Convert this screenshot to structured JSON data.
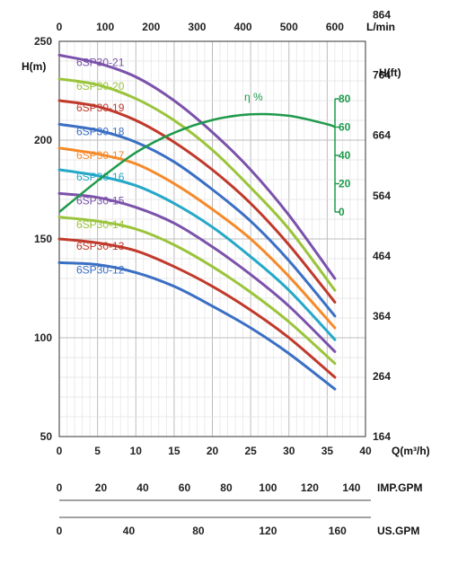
{
  "chart_data": {
    "type": "line",
    "x_axis": {
      "label": "Q(m³/h)",
      "range": [
        0,
        40
      ],
      "ticks": [
        0,
        5,
        10,
        15,
        20,
        25,
        30,
        35,
        40
      ]
    },
    "y_axis": {
      "label": "H(m)",
      "range": [
        50,
        250
      ],
      "ticks": [
        50,
        100,
        150,
        200,
        250
      ]
    },
    "top_axis": {
      "label": "L/min",
      "range": [
        0,
        666.7
      ],
      "ticks": [
        0,
        100,
        200,
        300,
        400,
        500,
        600
      ]
    },
    "right_axis": {
      "label": "H(ft)",
      "ticks": [
        164,
        264,
        364,
        464,
        564,
        664,
        764,
        864
      ]
    },
    "efficiency_axis": {
      "label": "η %",
      "range": [
        0,
        80
      ],
      "ticks": [
        0,
        20,
        40,
        60,
        80
      ]
    },
    "imp_gpm_axis": {
      "label": "IMP.GPM",
      "range": [
        0,
        146.7
      ],
      "ticks": [
        0,
        20,
        40,
        60,
        80,
        100,
        120,
        140
      ]
    },
    "us_gpm_axis": {
      "label": "US.GPM",
      "range": [
        0,
        176.1
      ],
      "ticks": [
        0,
        40,
        80,
        120,
        160
      ]
    },
    "grid": true,
    "series": [
      {
        "name": "6SP30-12",
        "color": "#3a6fc4",
        "x": [
          0,
          5,
          10,
          15,
          20,
          25,
          30,
          36
        ],
        "values": [
          138,
          137,
          133,
          126,
          116,
          105,
          92,
          74
        ]
      },
      {
        "name": "6SP30-13",
        "color": "#c0392b",
        "x": [
          0,
          5,
          10,
          15,
          20,
          25,
          30,
          36
        ],
        "values": [
          150,
          148,
          144,
          136,
          126,
          114,
          100,
          80
        ]
      },
      {
        "name": "6SP30-14",
        "color": "#9ac43a",
        "x": [
          0,
          5,
          10,
          15,
          20,
          25,
          30,
          36
        ],
        "values": [
          161,
          159,
          155,
          147,
          136,
          123,
          108,
          87
        ]
      },
      {
        "name": "6SP30-15",
        "color": "#7b52ab",
        "x": [
          0,
          5,
          10,
          15,
          20,
          25,
          30,
          36
        ],
        "values": [
          173,
          171,
          166,
          158,
          146,
          132,
          116,
          93
        ]
      },
      {
        "name": "6SP30-16",
        "color": "#25a8c8",
        "x": [
          0,
          5,
          10,
          15,
          20,
          25,
          30,
          36
        ],
        "values": [
          185,
          182,
          177,
          168,
          156,
          141,
          124,
          99
        ]
      },
      {
        "name": "6SP30-17",
        "color": "#f58a2a",
        "x": [
          0,
          5,
          10,
          15,
          20,
          25,
          30,
          36
        ],
        "values": [
          196,
          193,
          188,
          178,
          165,
          150,
          131,
          105
        ]
      },
      {
        "name": "6SP30-18",
        "color": "#3a6fc4",
        "x": [
          0,
          5,
          10,
          15,
          20,
          25,
          30,
          36
        ],
        "values": [
          208,
          205,
          199,
          189,
          175,
          159,
          139,
          111
        ]
      },
      {
        "name": "6SP30-19",
        "color": "#c0392b",
        "x": [
          0,
          5,
          10,
          15,
          20,
          25,
          30,
          36
        ],
        "values": [
          220,
          217,
          210,
          199,
          185,
          168,
          147,
          118
        ]
      },
      {
        "name": "6SP30-20",
        "color": "#9ac43a",
        "x": [
          0,
          5,
          10,
          15,
          20,
          25,
          30,
          36
        ],
        "values": [
          231,
          228,
          221,
          210,
          195,
          176,
          155,
          124
        ]
      },
      {
        "name": "6SP30-21",
        "color": "#7b52ab",
        "x": [
          0,
          5,
          10,
          15,
          20,
          25,
          30,
          36
        ],
        "values": [
          243,
          239,
          232,
          220,
          204,
          185,
          162,
          130
        ]
      }
    ],
    "efficiency": {
      "name": "η %",
      "color": "#1f9a4b",
      "x": [
        0,
        5,
        10,
        15,
        20,
        25,
        30,
        35,
        36
      ],
      "values": [
        0,
        22,
        42,
        56,
        65,
        69,
        68,
        62,
        60
      ]
    }
  }
}
